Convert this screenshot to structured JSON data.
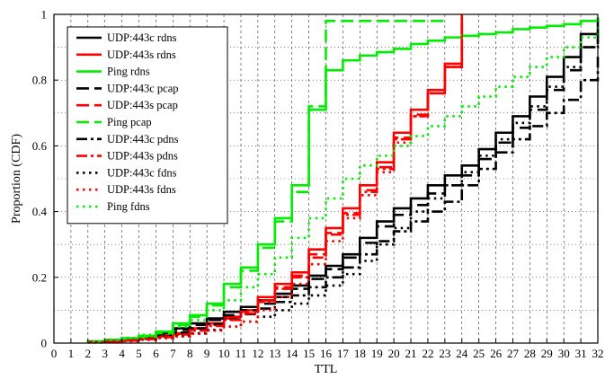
{
  "chart_data": {
    "type": "line",
    "step": true,
    "xlabel": "TTL",
    "ylabel": "Proportion (CDF)",
    "xlim": [
      0,
      32
    ],
    "ylim": [
      0,
      1
    ],
    "x_ticks": [
      0,
      1,
      2,
      3,
      4,
      5,
      6,
      7,
      8,
      9,
      10,
      11,
      12,
      13,
      14,
      15,
      16,
      17,
      18,
      19,
      20,
      21,
      22,
      23,
      24,
      25,
      26,
      27,
      28,
      29,
      30,
      31,
      32
    ],
    "y_ticks": [
      0,
      0.2,
      0.4,
      0.6,
      0.8,
      1
    ],
    "y_tick_labels": [
      "0",
      "0.2",
      "0.4",
      "0.6",
      "0.8",
      "1"
    ],
    "grid": true,
    "legend_position": "upper-left",
    "series": [
      {
        "name": "UDP:443c rdns",
        "color": "#000000",
        "style": "solid",
        "x": [
          2,
          3,
          4,
          5,
          6,
          7,
          8,
          9,
          10,
          11,
          12,
          13,
          14,
          15,
          16,
          17,
          18,
          19,
          20,
          21,
          22,
          23,
          24,
          25,
          26,
          27,
          28,
          29,
          30,
          31,
          32
        ],
        "y": [
          0.005,
          0.008,
          0.012,
          0.02,
          0.03,
          0.045,
          0.06,
          0.075,
          0.095,
          0.11,
          0.13,
          0.15,
          0.175,
          0.205,
          0.235,
          0.27,
          0.32,
          0.37,
          0.41,
          0.44,
          0.48,
          0.51,
          0.54,
          0.59,
          0.64,
          0.69,
          0.75,
          0.81,
          0.87,
          0.94,
          0.99
        ]
      },
      {
        "name": "UDP:443s rdns",
        "color": "#ff0000",
        "style": "solid",
        "x": [
          2,
          3,
          4,
          5,
          6,
          7,
          8,
          9,
          10,
          11,
          12,
          13,
          14,
          15,
          16,
          17,
          18,
          19,
          20,
          21,
          22,
          23,
          24
        ],
        "y": [
          0.003,
          0.006,
          0.01,
          0.015,
          0.022,
          0.03,
          0.045,
          0.06,
          0.08,
          0.1,
          0.14,
          0.18,
          0.215,
          0.285,
          0.35,
          0.41,
          0.48,
          0.55,
          0.64,
          0.71,
          0.77,
          0.85,
          1.0
        ]
      },
      {
        "name": "Ping rdns",
        "color": "#00ee00",
        "style": "solid",
        "x": [
          2,
          3,
          4,
          5,
          6,
          7,
          8,
          9,
          10,
          11,
          12,
          13,
          14,
          15,
          16,
          17,
          18,
          19,
          20,
          21,
          22,
          23,
          24,
          25,
          26,
          27,
          28,
          29,
          30,
          31,
          32
        ],
        "y": [
          0.005,
          0.01,
          0.015,
          0.022,
          0.035,
          0.06,
          0.085,
          0.12,
          0.18,
          0.23,
          0.3,
          0.38,
          0.48,
          0.71,
          0.83,
          0.86,
          0.875,
          0.885,
          0.895,
          0.91,
          0.92,
          0.93,
          0.935,
          0.94,
          0.945,
          0.955,
          0.96,
          0.965,
          0.97,
          0.98,
          0.99
        ]
      },
      {
        "name": "UDP:443c pcap",
        "color": "#000000",
        "style": "dashed",
        "x": [
          2,
          3,
          4,
          5,
          6,
          7,
          8,
          9,
          10,
          11,
          12,
          13,
          14,
          15,
          16,
          17,
          18,
          19,
          20,
          21,
          22,
          23,
          24,
          25,
          26,
          27,
          28,
          29,
          30,
          31,
          32
        ],
        "y": [
          0.004,
          0.007,
          0.01,
          0.016,
          0.025,
          0.04,
          0.055,
          0.07,
          0.085,
          0.1,
          0.12,
          0.14,
          0.165,
          0.195,
          0.225,
          0.26,
          0.305,
          0.355,
          0.39,
          0.42,
          0.455,
          0.48,
          0.51,
          0.56,
          0.61,
          0.655,
          0.71,
          0.77,
          0.83,
          0.9,
          0.96
        ]
      },
      {
        "name": "UDP:443s pcap",
        "color": "#ff0000",
        "style": "dashed",
        "x": [
          2,
          3,
          4,
          5,
          6,
          7,
          8,
          9,
          10,
          11,
          12,
          13,
          14,
          15,
          16,
          17,
          18,
          19,
          20,
          21,
          22,
          23,
          24
        ],
        "y": [
          0.003,
          0.005,
          0.008,
          0.013,
          0.02,
          0.028,
          0.04,
          0.055,
          0.075,
          0.095,
          0.13,
          0.17,
          0.205,
          0.27,
          0.335,
          0.395,
          0.465,
          0.535,
          0.625,
          0.695,
          0.76,
          0.84,
          1.0
        ]
      },
      {
        "name": "Ping pcap",
        "color": "#00ee00",
        "style": "dashed",
        "x": [
          2,
          3,
          4,
          5,
          6,
          7,
          8,
          9,
          10,
          11,
          12,
          13,
          14,
          15,
          16,
          17,
          18,
          19,
          20,
          21,
          22,
          23
        ],
        "y": [
          0.004,
          0.008,
          0.012,
          0.018,
          0.03,
          0.055,
          0.08,
          0.115,
          0.17,
          0.22,
          0.29,
          0.37,
          0.46,
          0.72,
          0.98,
          0.98,
          0.98,
          0.98,
          0.98,
          0.98,
          0.98,
          0.98
        ]
      },
      {
        "name": "UDP:443c pdns",
        "color": "#000000",
        "style": "dashdot",
        "x": [
          2,
          3,
          4,
          5,
          6,
          7,
          8,
          9,
          10,
          11,
          12,
          13,
          14,
          15,
          16,
          17,
          18,
          19,
          20,
          21,
          22,
          23,
          24,
          25,
          26,
          27,
          28,
          29,
          30,
          31,
          32
        ],
        "y": [
          0.003,
          0.005,
          0.008,
          0.013,
          0.02,
          0.032,
          0.045,
          0.058,
          0.072,
          0.088,
          0.105,
          0.125,
          0.145,
          0.17,
          0.2,
          0.23,
          0.27,
          0.31,
          0.34,
          0.37,
          0.4,
          0.43,
          0.48,
          0.53,
          0.58,
          0.62,
          0.66,
          0.7,
          0.74,
          0.8,
          0.88
        ]
      },
      {
        "name": "UDP:443s pdns",
        "color": "#ff0000",
        "style": "dashdot",
        "x": [
          2,
          3,
          4,
          5,
          6,
          7,
          8,
          9,
          10,
          11,
          12,
          13,
          14,
          15,
          16,
          17,
          18,
          19,
          20,
          21,
          22,
          23,
          24
        ],
        "y": [
          0.003,
          0.005,
          0.008,
          0.012,
          0.018,
          0.026,
          0.038,
          0.052,
          0.07,
          0.09,
          0.125,
          0.165,
          0.2,
          0.26,
          0.33,
          0.39,
          0.46,
          0.53,
          0.62,
          0.69,
          0.76,
          0.84,
          1.0
        ]
      },
      {
        "name": "UDP:443c fdns",
        "color": "#000000",
        "style": "dotted",
        "x": [
          2,
          3,
          4,
          5,
          6,
          7,
          8,
          9,
          10,
          11,
          12,
          13,
          14,
          15,
          16,
          17,
          18,
          19,
          20,
          21,
          22,
          23,
          24,
          25,
          26,
          27,
          28,
          29,
          30,
          31,
          32
        ],
        "y": [
          0.002,
          0.004,
          0.006,
          0.01,
          0.015,
          0.022,
          0.03,
          0.04,
          0.05,
          0.065,
          0.08,
          0.1,
          0.12,
          0.145,
          0.175,
          0.21,
          0.25,
          0.3,
          0.35,
          0.4,
          0.44,
          0.48,
          0.52,
          0.57,
          0.62,
          0.67,
          0.72,
          0.78,
          0.84,
          0.9,
          0.95
        ]
      },
      {
        "name": "UDP:443s fdns",
        "color": "#ff0000",
        "style": "dotted",
        "x": [
          2,
          3,
          4,
          5,
          6,
          7,
          8,
          9,
          10,
          11,
          12,
          13,
          14,
          15,
          16,
          17,
          18,
          19,
          20,
          21,
          22,
          23,
          24
        ],
        "y": [
          0.002,
          0.004,
          0.006,
          0.01,
          0.015,
          0.02,
          0.028,
          0.038,
          0.05,
          0.065,
          0.1,
          0.14,
          0.18,
          0.24,
          0.31,
          0.38,
          0.45,
          0.52,
          0.61,
          0.69,
          0.76,
          0.84,
          1.0
        ]
      },
      {
        "name": "Ping fdns",
        "color": "#00ee00",
        "style": "dotted",
        "x": [
          2,
          3,
          4,
          5,
          6,
          7,
          8,
          9,
          10,
          11,
          12,
          13,
          14,
          15,
          16,
          17,
          18,
          19,
          20,
          21,
          22,
          23,
          24,
          25,
          26,
          27,
          28,
          29,
          30,
          31,
          32
        ],
        "y": [
          0.005,
          0.01,
          0.016,
          0.025,
          0.035,
          0.05,
          0.07,
          0.1,
          0.13,
          0.17,
          0.21,
          0.26,
          0.32,
          0.38,
          0.44,
          0.5,
          0.54,
          0.57,
          0.6,
          0.63,
          0.66,
          0.69,
          0.72,
          0.75,
          0.78,
          0.81,
          0.84,
          0.87,
          0.9,
          0.93,
          0.97
        ]
      }
    ]
  }
}
